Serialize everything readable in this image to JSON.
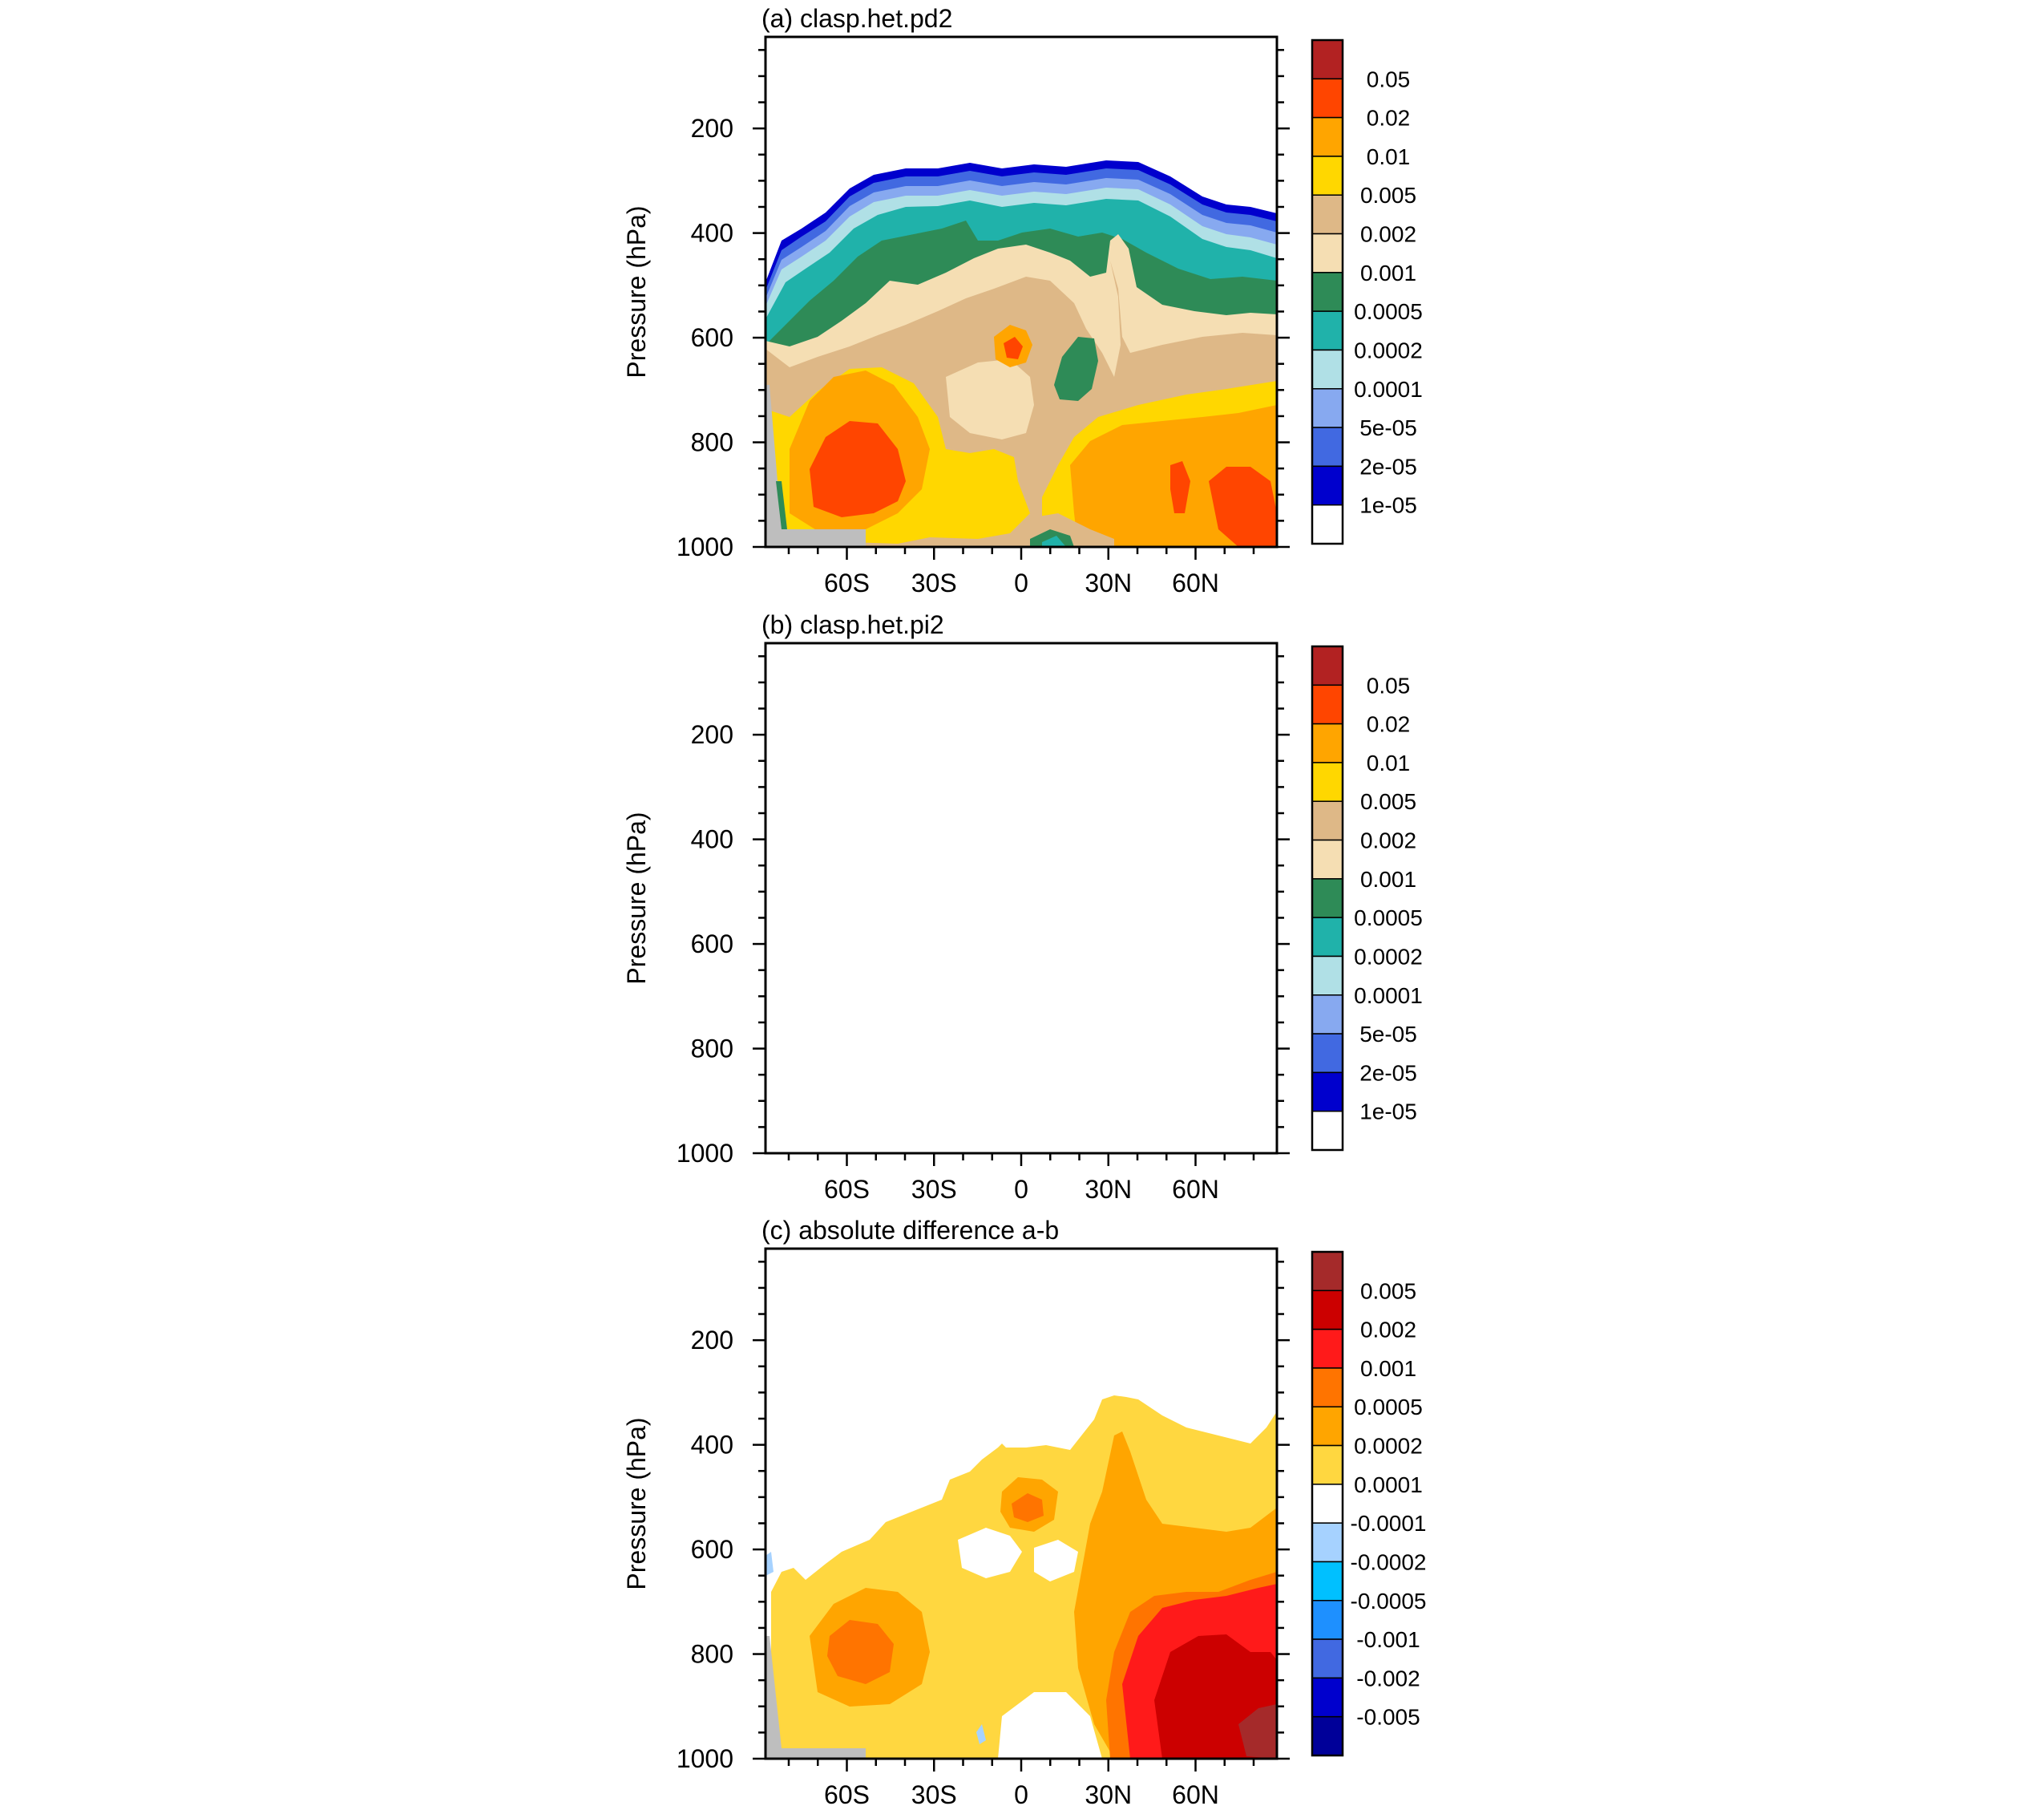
{
  "panel_titles": [
    "(a) clasp.het.pd2",
    "(b) clasp.het.pi2",
    "(c) absolute difference a-b"
  ],
  "axis_label": "Pressure (hPa)",
  "chart_data": [
    {
      "type": "contour",
      "title": "(a) clasp.het.pd2",
      "ylabel": "Pressure (hPa)",
      "xlabel": "",
      "x_ticks": [
        "60S",
        "30S",
        "0",
        "30N",
        "60N"
      ],
      "x_tick_values": [
        -60,
        -30,
        0,
        30,
        60
      ],
      "xlim": [
        -88,
        88
      ],
      "y_ticks": [
        "200",
        "400",
        "600",
        "800",
        "1000"
      ],
      "y_tick_values": [
        200,
        400,
        600,
        800,
        1000
      ],
      "ylim": [
        1000,
        25
      ],
      "colorbar": {
        "labels": [
          "0.05",
          "0.02",
          "0.01",
          "0.005",
          "0.002",
          "0.001",
          "0.0005",
          "0.0002",
          "0.0001",
          "5e-05",
          "2e-05",
          "1e-05"
        ],
        "colors": [
          "#b22222",
          "#ff4500",
          "#ffa500",
          "#ffd700",
          "#deb887",
          "#f5deb3",
          "#2e8b57",
          "#20b2aa",
          "#b0e0e6",
          "#87a9f0",
          "#4169e1",
          "#0000cd",
          "#ffffff"
        ]
      }
    },
    {
      "type": "contour",
      "title": "(b) clasp.het.pi2",
      "ylabel": "Pressure (hPa)",
      "xlabel": "",
      "x_ticks": [
        "60S",
        "30S",
        "0",
        "30N",
        "60N"
      ],
      "x_tick_values": [
        -60,
        -30,
        0,
        30,
        60
      ],
      "xlim": [
        -88,
        88
      ],
      "y_ticks": [
        "200",
        "400",
        "600",
        "800",
        "1000"
      ],
      "y_tick_values": [
        200,
        400,
        600,
        800,
        1000
      ],
      "ylim": [
        1000,
        25
      ],
      "colorbar": {
        "labels": [
          "0.05",
          "0.02",
          "0.01",
          "0.005",
          "0.002",
          "0.001",
          "0.0005",
          "0.0002",
          "0.0001",
          "5e-05",
          "2e-05",
          "1e-05"
        ],
        "colors": [
          "#b22222",
          "#ff4500",
          "#ffa500",
          "#ffd700",
          "#deb887",
          "#f5deb3",
          "#2e8b57",
          "#20b2aa",
          "#b0e0e6",
          "#87a9f0",
          "#4169e1",
          "#0000cd",
          "#ffffff"
        ]
      }
    },
    {
      "type": "contour",
      "title": "(c) absolute difference a-b",
      "ylabel": "Pressure (hPa)",
      "xlabel": "",
      "x_ticks": [
        "60S",
        "30S",
        "0",
        "30N",
        "60N"
      ],
      "x_tick_values": [
        -60,
        -30,
        0,
        30,
        60
      ],
      "xlim": [
        -88,
        88
      ],
      "y_ticks": [
        "200",
        "400",
        "600",
        "800",
        "1000"
      ],
      "y_tick_values": [
        200,
        400,
        600,
        800,
        1000
      ],
      "ylim": [
        1000,
        25
      ],
      "colorbar": {
        "labels": [
          "0.005",
          "0.002",
          "0.001",
          "0.0005",
          "0.0002",
          "0.0001",
          "-0.0001",
          "-0.0002",
          "-0.0005",
          "-0.001",
          "-0.002",
          "-0.005"
        ],
        "colors": [
          "#a52a2a",
          "#cc0000",
          "#ff1a1a",
          "#ff7400",
          "#ffa500",
          "#ffd740",
          "#ffffff",
          "#a6d2ff",
          "#00c0ff",
          "#1e90ff",
          "#4169e1",
          "#0000cd",
          "#000099"
        ]
      }
    }
  ]
}
